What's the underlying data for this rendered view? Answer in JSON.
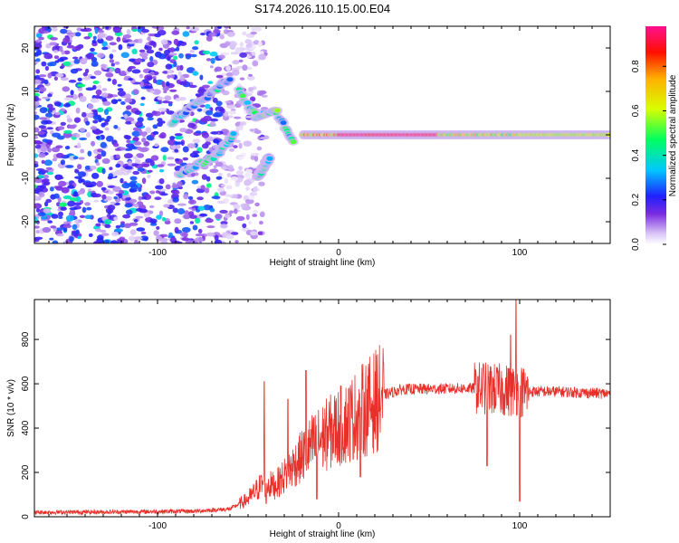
{
  "figure_title": "S174.2026.110.15.00.E04",
  "chart_data": [
    {
      "type": "heatmap",
      "name": "spectrogram",
      "title": "S174.2026.110.15.00.E04",
      "xlabel": "Height of straight line (km)",
      "ylabel": "Frequency (Hz)",
      "xlim": [
        -168,
        150
      ],
      "ylim": [
        -25,
        25
      ],
      "x_ticks": [
        -100,
        0,
        100
      ],
      "y_ticks": [
        -20,
        -10,
        0,
        10,
        20
      ],
      "x_tick_labels": [
        "-100",
        "0",
        "100"
      ],
      "y_tick_labels": [
        "-20",
        "-10",
        "0",
        "10",
        "20"
      ],
      "colorbar": {
        "label": "Normalized spectral amplitude",
        "range": [
          0,
          1
        ],
        "ticks": [
          0.0,
          0.2,
          0.4,
          0.6,
          0.8
        ],
        "tick_labels": [
          "0.0",
          "0.2",
          "0.4",
          "0.6",
          "0.8"
        ],
        "colormap": [
          "#ffffff",
          "#c8a8f0",
          "#7a2be0",
          "#2020ff",
          "#00c8ff",
          "#00ff60",
          "#d8ff00",
          "#ffb000",
          "#ff0000",
          "#ff1090"
        ]
      },
      "noise_region": {
        "x": [
          -168,
          -65
        ],
        "y": [
          -25,
          25
        ],
        "amplitude": [
          0.05,
          0.35
        ]
      },
      "features": [
        {
          "name": "descending-track",
          "x": [
            -88,
            -68,
            -58
          ],
          "y": [
            -9,
            -5,
            0
          ],
          "amplitude": 0.4
        },
        {
          "name": "rising-track",
          "x": [
            -92,
            -75,
            -60
          ],
          "y": [
            3,
            8,
            13
          ],
          "amplitude": 0.35
        },
        {
          "name": "loop-cluster",
          "x": [
            -55,
            -45,
            -35,
            -25
          ],
          "y": [
            10,
            4,
            6,
            -2
          ],
          "amplitude": 0.45
        },
        {
          "name": "lower-branch",
          "x": [
            -45,
            -38
          ],
          "y": [
            -10,
            -5
          ],
          "amplitude": 0.4
        },
        {
          "name": "carrier-line",
          "x": [
            -20,
            150
          ],
          "y": [
            0,
            0
          ],
          "amplitude": 0.95
        }
      ]
    },
    {
      "type": "line",
      "name": "snr",
      "title": "",
      "xlabel": "Height of straight line (km)",
      "ylabel": "SNR (10 * v/v)",
      "xlim": [
        -168,
        150
      ],
      "ylim": [
        0,
        980
      ],
      "x_ticks": [
        -100,
        0,
        100
      ],
      "y_ticks": [
        0,
        200,
        400,
        600,
        800
      ],
      "x_tick_labels": [
        "-100",
        "0",
        "100"
      ],
      "y_tick_labels": [
        "0",
        "200",
        "400",
        "600",
        "800"
      ],
      "color": "#e8302a",
      "envelope_points": [
        {
          "x": -168,
          "y": 20
        },
        {
          "x": -120,
          "y": 22
        },
        {
          "x": -80,
          "y": 25
        },
        {
          "x": -60,
          "y": 35
        },
        {
          "x": -50,
          "y": 80
        },
        {
          "x": -42,
          "y": 150
        },
        {
          "x": -35,
          "y": 140
        },
        {
          "x": -25,
          "y": 230
        },
        {
          "x": -15,
          "y": 320
        },
        {
          "x": -5,
          "y": 380
        },
        {
          "x": 5,
          "y": 430
        },
        {
          "x": 15,
          "y": 490
        },
        {
          "x": 25,
          "y": 550
        },
        {
          "x": 35,
          "y": 575
        },
        {
          "x": 60,
          "y": 578
        },
        {
          "x": 80,
          "y": 580
        },
        {
          "x": 100,
          "y": 565
        },
        {
          "x": 120,
          "y": 565
        },
        {
          "x": 150,
          "y": 555
        }
      ],
      "spikes": [
        {
          "x": -41,
          "y": 610
        },
        {
          "x": -40,
          "y": 60
        },
        {
          "x": -28,
          "y": 530
        },
        {
          "x": -18,
          "y": 660
        },
        {
          "x": -12,
          "y": 80
        },
        {
          "x": 12,
          "y": 180
        },
        {
          "x": 80,
          "y": 690
        },
        {
          "x": 82,
          "y": 230
        },
        {
          "x": 95,
          "y": 820
        },
        {
          "x": 98,
          "y": 980
        },
        {
          "x": 100,
          "y": 70
        }
      ]
    }
  ]
}
